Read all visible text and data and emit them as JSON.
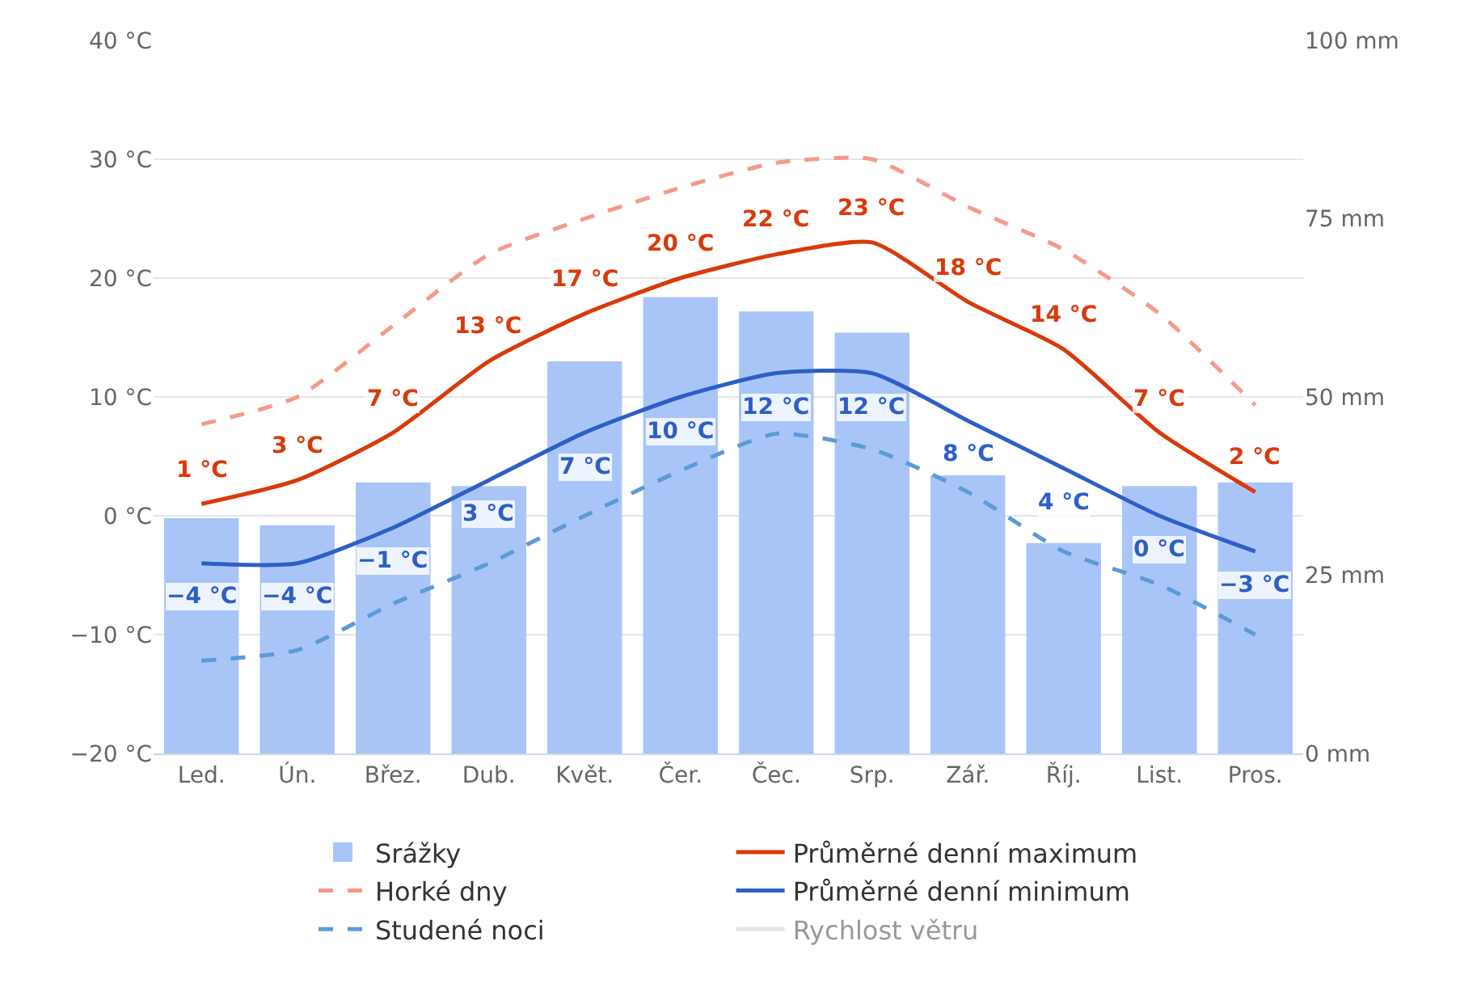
{
  "chart_data": {
    "type": "line",
    "categories": [
      "Led.",
      "Ún.",
      "Břez.",
      "Dub.",
      "Květ.",
      "Čer.",
      "Čec.",
      "Srp.",
      "Zář.",
      "Říj.",
      "List.",
      "Pros."
    ],
    "series": [
      {
        "name": "Srážky",
        "type": "bar",
        "axis": "y2",
        "color": "#a9c5f8",
        "values": [
          33,
          32,
          38,
          37.5,
          55,
          64,
          62,
          59,
          39,
          29.5,
          37.5,
          38
        ]
      },
      {
        "name": "Průměrné denní maximum",
        "color": "#d93a0b",
        "line_style": "solid",
        "values": [
          1,
          3,
          7,
          13,
          17,
          20,
          22,
          23,
          18,
          14,
          7,
          2
        ],
        "value_labels": [
          "1 °C",
          "3 °C",
          "7 °C",
          "13 °C",
          "17 °C",
          "20 °C",
          "22 °C",
          "23 °C",
          "18 °C",
          "14 °C",
          "7 °C",
          "2 °C"
        ]
      },
      {
        "name": "Horké dny",
        "color": "#f59a8a",
        "line_style": "dashed",
        "values": [
          7.7,
          10,
          16,
          22,
          25,
          27.6,
          29.7,
          30,
          26,
          22.4,
          17,
          9.3
        ]
      },
      {
        "name": "Průměrné denní minimum",
        "color": "#2e5fc7",
        "line_style": "solid",
        "values": [
          -4,
          -4,
          -1,
          3,
          7,
          10,
          12,
          12,
          8,
          4,
          0,
          -3
        ],
        "value_labels": [
          "−4 °C",
          "−4 °C",
          "−1 °C",
          "3 °C",
          "7 °C",
          "10 °C",
          "12 °C",
          "12 °C",
          "8 °C",
          "4 °C",
          "0 °C",
          "−3 °C"
        ]
      },
      {
        "name": "Studené noci",
        "color": "#5c9ad8",
        "line_style": "dashed",
        "values": [
          -12.2,
          -11.3,
          -7.4,
          -4,
          0,
          3.8,
          6.9,
          5.6,
          2,
          -3,
          -5.8,
          -10
        ]
      },
      {
        "name": "Rychlost větru",
        "color": "#cccccc",
        "line_style": "solid",
        "values": [
          null,
          null,
          null,
          null,
          null,
          null,
          null,
          null,
          null,
          null,
          null,
          null
        ]
      }
    ],
    "ylim": [
      -20,
      40
    ],
    "yticks": [
      {
        "value": -20,
        "label": "−20 °C"
      },
      {
        "value": -10,
        "label": "−10 °C"
      },
      {
        "value": 0,
        "label": "0 °C"
      },
      {
        "value": 10,
        "label": "10 °C"
      },
      {
        "value": 20,
        "label": "20 °C"
      },
      {
        "value": 30,
        "label": "30 °C"
      },
      {
        "value": 40,
        "label": "40 °C"
      }
    ],
    "y2lim": [
      0,
      100
    ],
    "y2ticks": [
      {
        "value": 0,
        "label": "0 mm"
      },
      {
        "value": 25,
        "label": "25 mm"
      },
      {
        "value": 50,
        "label": "50 mm"
      },
      {
        "value": 75,
        "label": "75 mm"
      },
      {
        "value": 100,
        "label": "100 mm"
      }
    ],
    "grid": "y",
    "legend": "bottom",
    "marker": "none"
  }
}
